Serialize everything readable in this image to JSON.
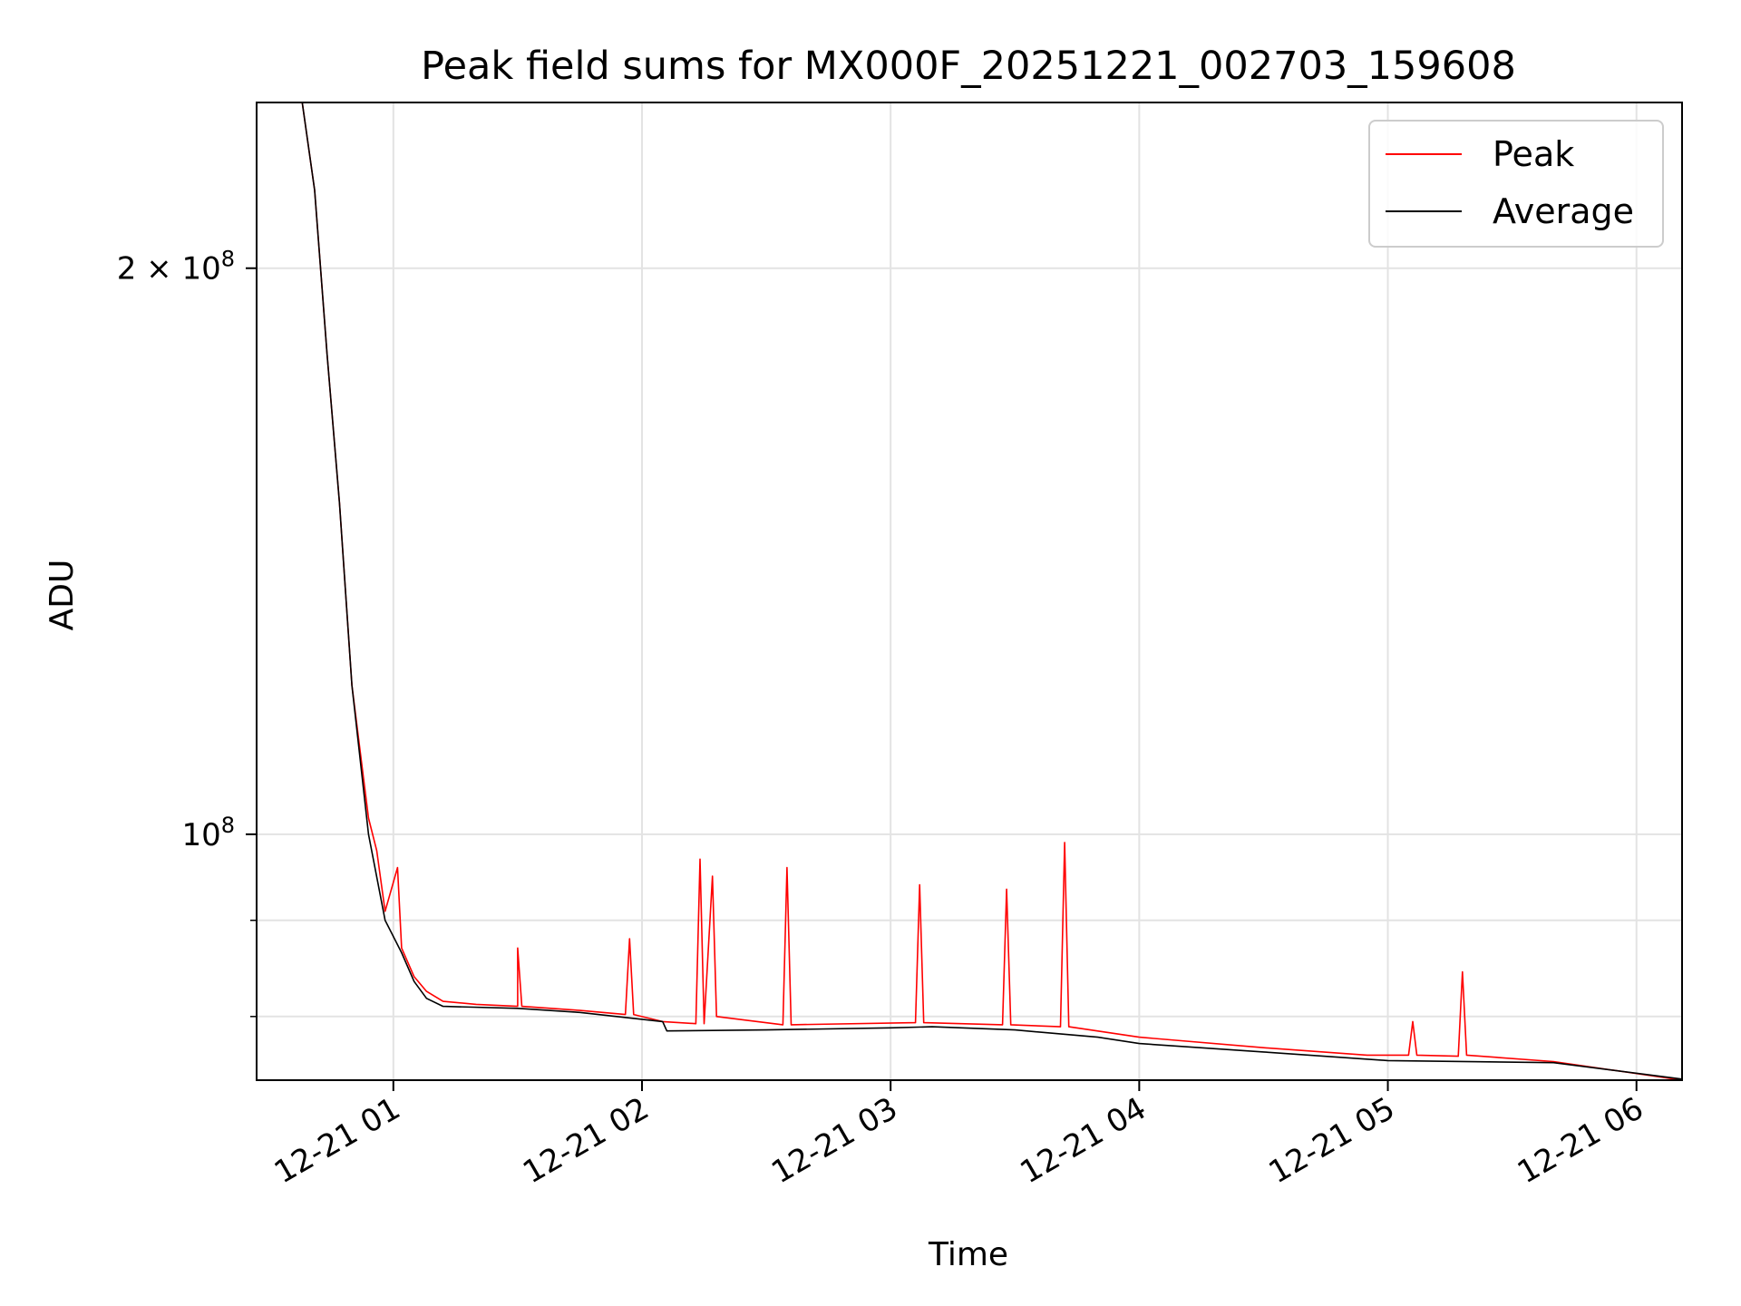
{
  "chart_data": {
    "type": "line",
    "title": "Peak field sums for MX000F_20251221_002703_159608",
    "xlabel": "Time",
    "ylabel": "ADU",
    "yscale": "log",
    "grid": true,
    "legend_position": "top-right",
    "x_ticks": [
      "12-21 01",
      "12-21 02",
      "12-21 03",
      "12-21 04",
      "12-21 05",
      "12-21 06"
    ],
    "y_ticks": [
      {
        "value": 100000000,
        "mantissa": "",
        "exponent": "8"
      },
      {
        "value": 200000000,
        "mantissa": "2",
        "exponent": "8"
      }
    ],
    "xlim": [
      "2025-12-21 00:27",
      "2025-12-21 06:11"
    ],
    "ylim": [
      74000000,
      245000000
    ],
    "series": [
      {
        "name": "Peak",
        "color": "#ff0000",
        "points": [
          [
            "2025-12-21 00:27",
            245000000
          ],
          [
            "2025-12-21 00:38",
            245000000
          ],
          [
            "2025-12-21 00:41",
            220000000
          ],
          [
            "2025-12-21 00:44",
            180000000
          ],
          [
            "2025-12-21 00:47",
            150000000
          ],
          [
            "2025-12-21 00:50",
            120000000
          ],
          [
            "2025-12-21 00:54",
            102000000
          ],
          [
            "2025-12-21 00:56",
            98000000
          ],
          [
            "2025-12-21 00:58",
            91000000
          ],
          [
            "2025-12-21 01:01",
            96000000
          ],
          [
            "2025-12-21 01:02",
            87000000
          ],
          [
            "2025-12-21 01:05",
            84000000
          ],
          [
            "2025-12-21 01:08",
            82500000
          ],
          [
            "2025-12-21 01:12",
            81500000
          ],
          [
            "2025-12-21 01:20",
            81200000
          ],
          [
            "2025-12-21 01:30",
            81000000
          ],
          [
            "2025-12-21 01:30",
            87000000
          ],
          [
            "2025-12-21 01:31",
            81000000
          ],
          [
            "2025-12-21 01:45",
            80600000
          ],
          [
            "2025-12-21 01:56",
            80200000
          ],
          [
            "2025-12-21 01:57",
            88000000
          ],
          [
            "2025-12-21 01:58",
            80200000
          ],
          [
            "2025-12-21 02:05",
            79500000
          ],
          [
            "2025-12-21 02:13",
            79300000
          ],
          [
            "2025-12-21 02:14",
            97000000
          ],
          [
            "2025-12-21 02:15",
            79300000
          ],
          [
            "2025-12-21 02:17",
            95000000
          ],
          [
            "2025-12-21 02:18",
            80000000
          ],
          [
            "2025-12-21 02:34",
            79200000
          ],
          [
            "2025-12-21 02:35",
            96000000
          ],
          [
            "2025-12-21 02:36",
            79200000
          ],
          [
            "2025-12-21 03:06",
            79400000
          ],
          [
            "2025-12-21 03:07",
            94000000
          ],
          [
            "2025-12-21 03:08",
            79400000
          ],
          [
            "2025-12-21 03:27",
            79200000
          ],
          [
            "2025-12-21 03:28",
            93500000
          ],
          [
            "2025-12-21 03:29",
            79200000
          ],
          [
            "2025-12-21 03:41",
            79000000
          ],
          [
            "2025-12-21 03:42",
            99000000
          ],
          [
            "2025-12-21 03:43",
            79000000
          ],
          [
            "2025-12-21 04:00",
            78000000
          ],
          [
            "2025-12-21 04:30",
            77000000
          ],
          [
            "2025-12-21 04:55",
            76300000
          ],
          [
            "2025-12-21 05:05",
            76300000
          ],
          [
            "2025-12-21 05:06",
            79500000
          ],
          [
            "2025-12-21 05:07",
            76300000
          ],
          [
            "2025-12-21 05:17",
            76200000
          ],
          [
            "2025-12-21 05:18",
            84500000
          ],
          [
            "2025-12-21 05:19",
            76300000
          ],
          [
            "2025-12-21 05:40",
            75700000
          ],
          [
            "2025-12-21 06:11",
            74000000
          ]
        ]
      },
      {
        "name": "Average",
        "color": "#000000",
        "points": [
          [
            "2025-12-21 00:27",
            245000000
          ],
          [
            "2025-12-21 00:38",
            245000000
          ],
          [
            "2025-12-21 00:41",
            220000000
          ],
          [
            "2025-12-21 00:44",
            180000000
          ],
          [
            "2025-12-21 00:47",
            150000000
          ],
          [
            "2025-12-21 00:50",
            120000000
          ],
          [
            "2025-12-21 00:54",
            100000000
          ],
          [
            "2025-12-21 00:58",
            90000000
          ],
          [
            "2025-12-21 01:02",
            86500000
          ],
          [
            "2025-12-21 01:05",
            83500000
          ],
          [
            "2025-12-21 01:08",
            81800000
          ],
          [
            "2025-12-21 01:12",
            81000000
          ],
          [
            "2025-12-21 01:30",
            80800000
          ],
          [
            "2025-12-21 01:45",
            80400000
          ],
          [
            "2025-12-21 02:05",
            79500000
          ],
          [
            "2025-12-21 02:06",
            78600000
          ],
          [
            "2025-12-21 02:30",
            78700000
          ],
          [
            "2025-12-21 03:00",
            78900000
          ],
          [
            "2025-12-21 03:10",
            79000000
          ],
          [
            "2025-12-21 03:30",
            78700000
          ],
          [
            "2025-12-21 03:50",
            78000000
          ],
          [
            "2025-12-21 04:00",
            77400000
          ],
          [
            "2025-12-21 04:30",
            76600000
          ],
          [
            "2025-12-21 05:00",
            75800000
          ],
          [
            "2025-12-21 05:40",
            75600000
          ],
          [
            "2025-12-21 06:11",
            74100000
          ]
        ]
      }
    ]
  }
}
